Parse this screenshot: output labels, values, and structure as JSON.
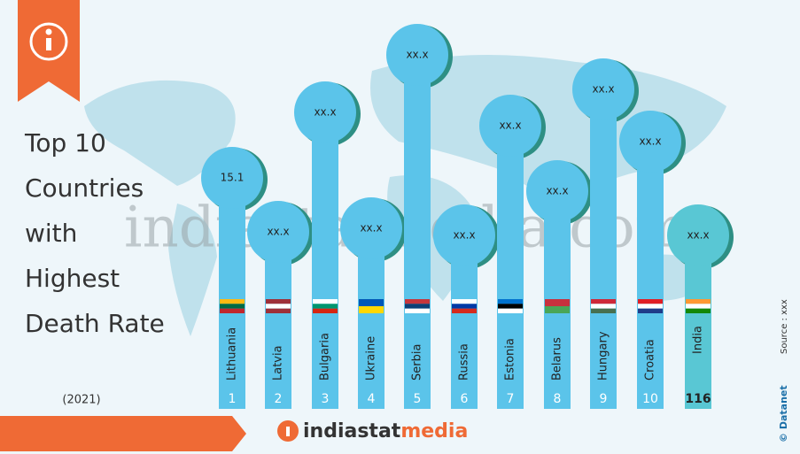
{
  "header": {
    "title_lines": [
      "Top 10",
      "Countries",
      "with",
      "Highest",
      "Death Rate"
    ],
    "year": "(2021)"
  },
  "items": [
    {
      "country": "Lithuania",
      "value": 15.1,
      "rank": 1
    },
    {
      "country": "Latvia",
      "value": "xx.x",
      "rank": 2
    },
    {
      "country": "Bulgaria",
      "value": "xx.x",
      "rank": 3
    },
    {
      "country": "Ukraine",
      "value": "xx.x",
      "rank": 4
    },
    {
      "country": "Serbia",
      "value": "xx.x",
      "rank": 5
    },
    {
      "country": "Russia",
      "value": "xx.x",
      "rank": 6
    },
    {
      "country": "Estonia",
      "value": "xx.x",
      "rank": 7
    },
    {
      "country": "Belarus",
      "value": "xx.x",
      "rank": 8
    },
    {
      "country": "Hungary",
      "value": "xx.x",
      "rank": 9
    },
    {
      "country": "Croatia",
      "value": "xx.x",
      "rank": 10
    },
    {
      "country": "India",
      "value": "xx.x",
      "rank": 116
    }
  ],
  "footer": {
    "brand_a": "indiastat",
    "brand_b": "media",
    "watermark": "indiastatmedia.com",
    "credit": "© Datanet",
    "source": "Source : xxx"
  }
}
